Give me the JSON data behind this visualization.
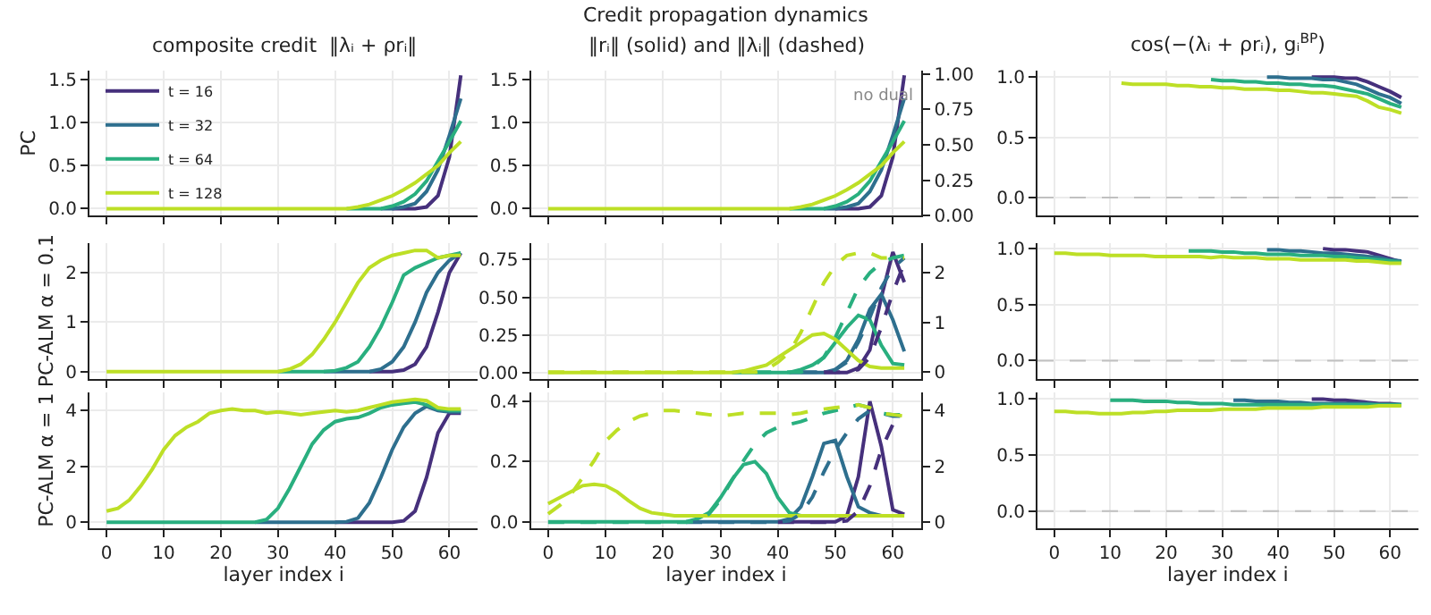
{
  "chart_data": [
    {
      "type": "line",
      "title": "composite credit  ‖λᵢ + ρrᵢ‖",
      "ylabel": "PC",
      "x": [
        0,
        2,
        4,
        6,
        8,
        10,
        12,
        14,
        16,
        18,
        20,
        22,
        24,
        26,
        28,
        30,
        32,
        34,
        36,
        38,
        40,
        42,
        44,
        46,
        48,
        50,
        52,
        54,
        56,
        58,
        60,
        62
      ],
      "xlim": [
        -3,
        65
      ],
      "xticks": [
        0,
        10,
        20,
        30,
        40,
        50,
        60
      ],
      "ylim": [
        -0.08,
        1.6
      ],
      "yticks": [
        {
          "value": 0,
          "label": "0.0"
        },
        {
          "value": 0.5,
          "label": "0.5"
        },
        {
          "value": 1,
          "label": "1.0"
        },
        {
          "value": 1.5,
          "label": "1.5"
        }
      ],
      "grid": true,
      "legend": "top left",
      "tick_labels": "y",
      "series": [
        {
          "name": "t = 16",
          "color": "#46307c",
          "values": [
            null,
            null,
            null,
            null,
            null,
            null,
            null,
            null,
            null,
            null,
            null,
            null,
            null,
            null,
            null,
            null,
            null,
            null,
            null,
            null,
            null,
            null,
            null,
            null,
            null,
            0,
            0,
            0,
            0.02,
            0.15,
            0.6,
            1.55
          ]
        },
        {
          "name": "t = 32",
          "color": "#2e6f8e",
          "values": [
            null,
            null,
            null,
            null,
            null,
            null,
            null,
            null,
            null,
            null,
            null,
            null,
            null,
            null,
            null,
            null,
            null,
            null,
            null,
            null,
            null,
            null,
            null,
            null,
            0,
            0,
            0.02,
            0.06,
            0.2,
            0.45,
            0.85,
            1.28
          ]
        },
        {
          "name": "t = 64",
          "color": "#29af7f",
          "values": [
            null,
            null,
            null,
            null,
            null,
            null,
            null,
            null,
            null,
            null,
            null,
            null,
            null,
            null,
            null,
            null,
            null,
            null,
            null,
            null,
            null,
            0,
            0,
            0,
            0,
            0.03,
            0.08,
            0.17,
            0.32,
            0.55,
            0.78,
            1.02
          ]
        },
        {
          "name": "t = 128",
          "color": "#bddf26",
          "values": [
            0,
            0,
            0,
            0,
            0,
            0,
            0,
            0,
            0,
            0,
            0,
            0,
            0,
            0,
            0,
            0,
            0,
            0,
            0,
            0,
            0,
            0,
            0.02,
            0.05,
            0.1,
            0.15,
            0.22,
            0.3,
            0.4,
            0.5,
            0.65,
            0.78
          ]
        }
      ]
    },
    {
      "type": "line",
      "title": "Credit propagation dynamics",
      "subtitle": "‖rᵢ‖ (solid) and ‖λᵢ‖ (dashed)",
      "annotations": [
        "no dual"
      ],
      "x": [
        0,
        2,
        4,
        6,
        8,
        10,
        12,
        14,
        16,
        18,
        20,
        22,
        24,
        26,
        28,
        30,
        32,
        34,
        36,
        38,
        40,
        42,
        44,
        46,
        48,
        50,
        52,
        54,
        56,
        58,
        60,
        62
      ],
      "xlim": [
        -3,
        65
      ],
      "xticks": [
        0,
        10,
        20,
        30,
        40,
        50,
        60
      ],
      "ylim": [
        -0.08,
        1.6
      ],
      "yticks": [
        {
          "value": 0,
          "label": "0.0"
        },
        {
          "value": 0.5,
          "label": "0.5"
        },
        {
          "value": 1,
          "label": "1.0"
        },
        {
          "value": 1.5,
          "label": "1.5"
        }
      ],
      "y2lim": [
        0,
        1.02
      ],
      "y2ticks": [
        {
          "value": 0,
          "label": "0.00"
        },
        {
          "value": 0.25,
          "label": "0.25"
        },
        {
          "value": 0.5,
          "label": "0.50"
        },
        {
          "value": 0.75,
          "label": "0.75"
        },
        {
          "value": 1,
          "label": "1.00"
        }
      ],
      "grid": true,
      "tick_labels": "y",
      "series": [
        {
          "color": "#46307c",
          "values": [
            null,
            null,
            null,
            null,
            null,
            null,
            null,
            null,
            null,
            null,
            null,
            null,
            null,
            null,
            null,
            null,
            null,
            null,
            null,
            null,
            null,
            null,
            null,
            null,
            null,
            0,
            0,
            0,
            0.02,
            0.15,
            0.6,
            1.55
          ]
        },
        {
          "color": "#2e6f8e",
          "values": [
            null,
            null,
            null,
            null,
            null,
            null,
            null,
            null,
            null,
            null,
            null,
            null,
            null,
            null,
            null,
            null,
            null,
            null,
            null,
            null,
            null,
            null,
            null,
            null,
            0,
            0,
            0.02,
            0.06,
            0.2,
            0.45,
            0.85,
            1.28
          ]
        },
        {
          "color": "#29af7f",
          "values": [
            null,
            null,
            null,
            null,
            null,
            null,
            null,
            null,
            null,
            null,
            null,
            null,
            null,
            null,
            null,
            null,
            null,
            null,
            null,
            null,
            null,
            0,
            0,
            0,
            0,
            0.03,
            0.08,
            0.17,
            0.32,
            0.55,
            0.78,
            1.02
          ]
        },
        {
          "color": "#bddf26",
          "values": [
            0,
            0,
            0,
            0,
            0,
            0,
            0,
            0,
            0,
            0,
            0,
            0,
            0,
            0,
            0,
            0,
            0,
            0,
            0,
            0,
            0,
            0,
            0.02,
            0.05,
            0.1,
            0.15,
            0.22,
            0.3,
            0.4,
            0.5,
            0.65,
            0.78
          ]
        }
      ]
    },
    {
      "type": "line",
      "title": "cos(−(λᵢ + ρrᵢ), gᵢ$^{BP}$)",
      "x": [
        12,
        14,
        16,
        18,
        20,
        22,
        24,
        26,
        28,
        30,
        32,
        34,
        36,
        38,
        40,
        42,
        44,
        46,
        48,
        50,
        52,
        54,
        56,
        58,
        60,
        62
      ],
      "xlim": [
        -3,
        65
      ],
      "xticks": [
        0,
        10,
        20,
        30,
        40,
        50,
        60
      ],
      "ylim": [
        -0.15,
        1.05
      ],
      "yticks": [
        {
          "value": 0,
          "label": "0.0"
        },
        {
          "value": 0.5,
          "label": "0.5"
        },
        {
          "value": 1,
          "label": "1.0"
        }
      ],
      "grid": true,
      "tick_labels": "y",
      "ref_lines": [
        {
          "axis": "y",
          "value": 0,
          "color": "#c0c0c0",
          "line_style": "dashed"
        }
      ],
      "series": [
        {
          "color": "#46307c",
          "values": [
            null,
            null,
            null,
            null,
            null,
            null,
            null,
            null,
            null,
            null,
            null,
            null,
            null,
            null,
            null,
            null,
            null,
            1.0,
            1.0,
            1.0,
            0.99,
            0.99,
            0.96,
            0.92,
            0.88,
            0.83
          ]
        },
        {
          "color": "#2e6f8e",
          "values": [
            null,
            null,
            null,
            null,
            null,
            null,
            null,
            null,
            null,
            null,
            null,
            null,
            null,
            1.0,
            1.0,
            0.99,
            0.99,
            0.99,
            0.98,
            0.98,
            0.96,
            0.94,
            0.9,
            0.86,
            0.83,
            0.78
          ]
        },
        {
          "color": "#29af7f",
          "values": [
            null,
            null,
            null,
            null,
            null,
            null,
            null,
            null,
            0.98,
            0.97,
            0.97,
            0.96,
            0.96,
            0.95,
            0.95,
            0.94,
            0.94,
            0.93,
            0.93,
            0.92,
            0.9,
            0.88,
            0.86,
            0.82,
            0.78,
            0.75
          ]
        },
        {
          "color": "#bddf26",
          "values": [
            0.95,
            0.94,
            0.94,
            0.94,
            0.94,
            0.93,
            0.93,
            0.92,
            0.92,
            0.91,
            0.91,
            0.9,
            0.9,
            0.9,
            0.89,
            0.89,
            0.88,
            0.87,
            0.87,
            0.86,
            0.85,
            0.84,
            0.8,
            0.75,
            0.73,
            0.7
          ]
        }
      ]
    },
    {
      "type": "line",
      "ylabel": "PC-ALM α = 0.1",
      "x": [
        0,
        2,
        4,
        6,
        8,
        10,
        12,
        14,
        16,
        18,
        20,
        22,
        24,
        26,
        28,
        30,
        32,
        34,
        36,
        38,
        40,
        42,
        44,
        46,
        48,
        50,
        52,
        54,
        56,
        58,
        60,
        62
      ],
      "xlim": [
        -3,
        65
      ],
      "xticks": [
        0,
        10,
        20,
        30,
        40,
        50,
        60
      ],
      "ylim": [
        -0.14,
        2.6
      ],
      "yticks": [
        0,
        1,
        2
      ],
      "grid": true,
      "tick_labels": "y",
      "series": [
        {
          "color": "#46307c",
          "values": [
            null,
            null,
            null,
            null,
            null,
            null,
            null,
            null,
            null,
            null,
            null,
            null,
            null,
            null,
            null,
            null,
            null,
            null,
            null,
            null,
            null,
            null,
            null,
            0,
            0,
            0,
            0.03,
            0.15,
            0.5,
            1.2,
            2.0,
            2.4
          ]
        },
        {
          "color": "#2e6f8e",
          "values": [
            null,
            null,
            null,
            null,
            null,
            null,
            null,
            null,
            null,
            null,
            null,
            null,
            null,
            null,
            null,
            null,
            null,
            null,
            null,
            0,
            0,
            0,
            0,
            0,
            0.05,
            0.2,
            0.5,
            1.0,
            1.6,
            2.0,
            2.25,
            2.4
          ]
        },
        {
          "color": "#29af7f",
          "values": [
            null,
            null,
            null,
            null,
            null,
            null,
            null,
            null,
            null,
            null,
            null,
            null,
            null,
            null,
            null,
            0,
            0,
            0,
            0,
            0,
            0.02,
            0.08,
            0.2,
            0.5,
            0.9,
            1.4,
            1.95,
            2.1,
            2.2,
            2.3,
            2.35,
            2.4
          ]
        },
        {
          "color": "#bddf26",
          "values": [
            0,
            0,
            0,
            0,
            0,
            0,
            0,
            0,
            0,
            0,
            0,
            0,
            0,
            0,
            0,
            0,
            0.05,
            0.15,
            0.35,
            0.65,
            1.0,
            1.4,
            1.8,
            2.1,
            2.25,
            2.35,
            2.4,
            2.45,
            2.45,
            2.3,
            2.35,
            2.35
          ]
        }
      ]
    },
    {
      "type": "line",
      "x": [
        0,
        2,
        4,
        6,
        8,
        10,
        12,
        14,
        16,
        18,
        20,
        22,
        24,
        26,
        28,
        30,
        32,
        34,
        36,
        38,
        40,
        42,
        44,
        46,
        48,
        50,
        52,
        54,
        56,
        58,
        60,
        62
      ],
      "xlim": [
        -3,
        65
      ],
      "xticks": [
        0,
        10,
        20,
        30,
        40,
        50,
        60
      ],
      "ylim": [
        -0.04,
        0.86
      ],
      "yticks": [
        {
          "value": 0,
          "label": "0.00"
        },
        {
          "value": 0.25,
          "label": "0.25"
        },
        {
          "value": 0.5,
          "label": "0.50"
        },
        {
          "value": 0.75,
          "label": "0.75"
        }
      ],
      "y2lim": [
        -0.13,
        2.6
      ],
      "y2ticks": [
        0,
        1,
        2
      ],
      "grid": true,
      "tick_labels": "y",
      "series": [
        {
          "color": "#46307c",
          "values": [
            null,
            null,
            null,
            null,
            null,
            null,
            null,
            null,
            null,
            null,
            null,
            null,
            null,
            null,
            null,
            null,
            null,
            null,
            null,
            null,
            null,
            null,
            null,
            null,
            0,
            0,
            0,
            0.03,
            0.15,
            0.5,
            0.8,
            0.6
          ]
        },
        {
          "color": "#2e6f8e",
          "values": [
            null,
            null,
            null,
            null,
            null,
            null,
            null,
            null,
            null,
            null,
            null,
            null,
            null,
            null,
            null,
            null,
            null,
            null,
            null,
            null,
            null,
            0,
            0,
            0,
            0,
            0.02,
            0.08,
            0.22,
            0.42,
            0.52,
            0.35,
            0.14
          ]
        },
        {
          "color": "#29af7f",
          "values": [
            null,
            null,
            null,
            null,
            null,
            null,
            null,
            null,
            null,
            null,
            null,
            null,
            null,
            null,
            null,
            null,
            0,
            0,
            0,
            0,
            0,
            0,
            0.02,
            0.05,
            0.1,
            0.2,
            0.3,
            0.38,
            0.35,
            0.18,
            0.06,
            0.05
          ]
        },
        {
          "color": "#bddf26",
          "values": [
            0,
            0,
            0,
            0,
            0,
            0,
            0,
            0,
            0,
            0,
            0,
            0,
            0,
            0,
            0,
            0,
            0,
            0.01,
            0.03,
            0.05,
            0.1,
            0.15,
            0.2,
            0.25,
            0.26,
            0.22,
            0.15,
            0.08,
            0.04,
            0.03,
            0.03,
            0.03
          ]
        },
        {
          "color": "#46307c",
          "axis": "y2",
          "line_style": "dashed",
          "values": [
            null,
            null,
            null,
            null,
            null,
            null,
            null,
            null,
            null,
            null,
            null,
            null,
            null,
            null,
            null,
            null,
            null,
            null,
            null,
            null,
            null,
            null,
            null,
            null,
            0,
            0,
            0,
            0.05,
            0.3,
            0.9,
            1.6,
            2.2
          ]
        },
        {
          "color": "#2e6f8e",
          "axis": "y2",
          "line_style": "dashed",
          "values": [
            null,
            null,
            null,
            null,
            null,
            null,
            null,
            null,
            null,
            null,
            null,
            null,
            null,
            null,
            null,
            null,
            null,
            null,
            null,
            null,
            null,
            null,
            0,
            0,
            0,
            0.05,
            0.2,
            0.6,
            1.1,
            1.7,
            2.1,
            2.3
          ]
        },
        {
          "color": "#29af7f",
          "axis": "y2",
          "line_style": "dashed",
          "values": [
            null,
            null,
            null,
            null,
            null,
            null,
            null,
            null,
            null,
            null,
            null,
            null,
            null,
            null,
            null,
            null,
            null,
            null,
            0,
            0,
            0,
            0,
            0,
            0.1,
            0.3,
            0.7,
            1.2,
            1.7,
            2.0,
            2.2,
            2.3,
            2.35
          ]
        },
        {
          "color": "#bddf26",
          "axis": "y2",
          "line_style": "dashed",
          "values": [
            0,
            0,
            0,
            0,
            0,
            0,
            0,
            0,
            0,
            0,
            0,
            0,
            0,
            0,
            0,
            0,
            0,
            0,
            0,
            0.05,
            0.2,
            0.4,
            0.8,
            1.3,
            1.8,
            2.15,
            2.35,
            2.4,
            2.4,
            2.3,
            2.3,
            2.3
          ]
        }
      ]
    },
    {
      "type": "line",
      "x": [
        0,
        2,
        4,
        6,
        8,
        10,
        12,
        14,
        16,
        18,
        20,
        22,
        24,
        26,
        28,
        30,
        32,
        34,
        36,
        38,
        40,
        42,
        44,
        46,
        48,
        50,
        52,
        54,
        56,
        58,
        60,
        62
      ],
      "xlim": [
        -3,
        65
      ],
      "xticks": [
        0,
        10,
        20,
        30,
        40,
        50,
        60
      ],
      "ylim": [
        -0.16,
        1.05
      ],
      "yticks": [
        {
          "value": 0,
          "label": "0.0"
        },
        {
          "value": 0.5,
          "label": "0.5"
        },
        {
          "value": 1,
          "label": "1.0"
        }
      ],
      "grid": true,
      "tick_labels": "y",
      "ref_lines": [
        {
          "axis": "y",
          "value": 0,
          "color": "#c0c0c0",
          "line_style": "dashed"
        }
      ],
      "series": [
        {
          "color": "#46307c",
          "values": [
            null,
            null,
            null,
            null,
            null,
            null,
            null,
            null,
            null,
            null,
            null,
            null,
            null,
            null,
            null,
            null,
            null,
            null,
            null,
            null,
            null,
            null,
            null,
            null,
            1.0,
            0.99,
            0.99,
            0.98,
            0.97,
            0.94,
            0.91,
            0.88
          ]
        },
        {
          "color": "#2e6f8e",
          "values": [
            null,
            null,
            null,
            null,
            null,
            null,
            null,
            null,
            null,
            null,
            null,
            null,
            null,
            null,
            null,
            null,
            null,
            null,
            null,
            0.99,
            0.99,
            0.98,
            0.98,
            0.97,
            0.96,
            0.96,
            0.95,
            0.94,
            0.93,
            0.92,
            0.9,
            0.89
          ]
        },
        {
          "color": "#29af7f",
          "values": [
            null,
            null,
            null,
            null,
            null,
            null,
            null,
            null,
            null,
            null,
            null,
            null,
            0.98,
            0.98,
            0.98,
            0.97,
            0.97,
            0.96,
            0.96,
            0.95,
            0.95,
            0.95,
            0.94,
            0.94,
            0.94,
            0.93,
            0.93,
            0.92,
            0.91,
            0.9,
            0.89,
            0.88
          ]
        },
        {
          "color": "#bddf26",
          "values": [
            0.96,
            0.96,
            0.95,
            0.95,
            0.95,
            0.94,
            0.94,
            0.94,
            0.94,
            0.93,
            0.93,
            0.93,
            0.93,
            0.93,
            0.92,
            0.93,
            0.92,
            0.92,
            0.92,
            0.91,
            0.91,
            0.91,
            0.9,
            0.9,
            0.9,
            0.9,
            0.9,
            0.89,
            0.89,
            0.88,
            0.87,
            0.87
          ]
        }
      ]
    },
    {
      "type": "line",
      "ylabel": "PC-ALM α = 1",
      "xlabel": "layer index i",
      "x": [
        0,
        2,
        4,
        6,
        8,
        10,
        12,
        14,
        16,
        18,
        20,
        22,
        24,
        26,
        28,
        30,
        32,
        34,
        36,
        38,
        40,
        42,
        44,
        46,
        48,
        50,
        52,
        54,
        56,
        58,
        60,
        62
      ],
      "xlim": [
        -3,
        65
      ],
      "xticks": [
        0,
        10,
        20,
        30,
        40,
        50,
        60
      ],
      "ylim": [
        -0.2,
        4.65
      ],
      "yticks": [
        0,
        2,
        4
      ],
      "grid": true,
      "series": [
        {
          "color": "#46307c",
          "values": [
            null,
            null,
            null,
            null,
            null,
            null,
            null,
            null,
            null,
            null,
            null,
            null,
            null,
            null,
            null,
            null,
            null,
            null,
            null,
            null,
            0,
            0,
            0,
            0,
            0,
            0,
            0.05,
            0.4,
            1.6,
            3.2,
            3.9,
            3.9
          ]
        },
        {
          "color": "#2e6f8e",
          "values": [
            null,
            null,
            null,
            null,
            null,
            null,
            null,
            null,
            null,
            null,
            null,
            null,
            null,
            0,
            0,
            0,
            0,
            0,
            0,
            0,
            0,
            0.02,
            0.15,
            0.7,
            1.6,
            2.6,
            3.4,
            3.9,
            4.15,
            4.0,
            3.95,
            3.95
          ]
        },
        {
          "color": "#29af7f",
          "values": [
            0,
            0,
            0,
            0,
            0,
            0,
            0,
            0,
            0,
            0,
            0,
            0,
            0,
            0,
            0.1,
            0.5,
            1.2,
            2.0,
            2.8,
            3.3,
            3.6,
            3.7,
            3.75,
            3.9,
            4.1,
            4.2,
            4.25,
            4.3,
            4.2,
            4.05,
            4.0,
            4.0
          ]
        },
        {
          "color": "#bddf26",
          "values": [
            0.4,
            0.5,
            0.8,
            1.3,
            1.9,
            2.6,
            3.1,
            3.4,
            3.6,
            3.9,
            4.0,
            4.05,
            4.0,
            4.0,
            3.9,
            3.95,
            3.9,
            3.85,
            3.9,
            3.95,
            4.0,
            3.95,
            4.0,
            4.1,
            4.2,
            4.3,
            4.35,
            4.4,
            4.35,
            4.1,
            4.05,
            4.05
          ]
        }
      ]
    },
    {
      "type": "line",
      "xlabel": "layer index i",
      "x": [
        0,
        2,
        4,
        6,
        8,
        10,
        12,
        14,
        16,
        18,
        20,
        22,
        24,
        26,
        28,
        30,
        32,
        34,
        36,
        38,
        40,
        42,
        44,
        46,
        48,
        50,
        52,
        54,
        56,
        58,
        60,
        62
      ],
      "xlim": [
        -3,
        65
      ],
      "xticks": [
        0,
        10,
        20,
        30,
        40,
        50,
        60
      ],
      "ylim": [
        -0.02,
        0.43
      ],
      "yticks": [
        {
          "value": 0,
          "label": "0.0"
        },
        {
          "value": 0.2,
          "label": "0.2"
        },
        {
          "value": 0.4,
          "label": "0.4"
        }
      ],
      "y2lim": [
        -0.2,
        4.65
      ],
      "y2ticks": [
        0,
        2,
        4
      ],
      "grid": true,
      "series": [
        {
          "color": "#46307c",
          "values": [
            null,
            null,
            null,
            null,
            null,
            null,
            null,
            null,
            null,
            null,
            null,
            null,
            null,
            null,
            null,
            null,
            null,
            null,
            null,
            null,
            0,
            0,
            0,
            0,
            0,
            0,
            0.02,
            0.15,
            0.4,
            0.25,
            0.04,
            0.025
          ]
        },
        {
          "color": "#2e6f8e",
          "values": [
            null,
            null,
            null,
            null,
            null,
            null,
            null,
            null,
            null,
            null,
            null,
            null,
            0,
            0,
            0,
            0,
            0,
            0,
            0,
            0,
            0,
            0.01,
            0.05,
            0.15,
            0.26,
            0.27,
            0.15,
            0.05,
            0.03,
            0.02,
            null,
            null
          ]
        },
        {
          "color": "#29af7f",
          "values": [
            0,
            0,
            0,
            0,
            0,
            0,
            0,
            0,
            0,
            0,
            0,
            0,
            0,
            0.01,
            0.03,
            0.08,
            0.14,
            0.19,
            0.2,
            0.16,
            0.08,
            0.03,
            0.02,
            null,
            null,
            null,
            null,
            null,
            null,
            null,
            null,
            null
          ]
        },
        {
          "color": "#bddf26",
          "values": [
            0.06,
            0.08,
            0.1,
            0.12,
            0.125,
            0.12,
            0.1,
            0.07,
            0.045,
            0.03,
            0.025,
            0.02,
            0.02,
            0.02,
            0.02,
            0.02,
            0.02,
            0.02,
            0.02,
            0.02,
            0.02,
            0.02,
            0.02,
            0.02,
            0.02,
            0.02,
            0.02,
            0.02,
            0.02,
            0.02,
            0.02,
            0.02
          ]
        },
        {
          "color": "#46307c",
          "axis": "y2",
          "line_style": "dashed",
          "values": [
            null,
            null,
            null,
            null,
            null,
            null,
            null,
            null,
            null,
            null,
            null,
            null,
            null,
            null,
            null,
            null,
            null,
            null,
            null,
            null,
            0,
            0,
            0,
            0,
            0,
            0,
            0.05,
            0.4,
            1.3,
            2.6,
            3.5,
            3.8
          ]
        },
        {
          "color": "#2e6f8e",
          "axis": "y2",
          "line_style": "dashed",
          "values": [
            null,
            null,
            null,
            null,
            null,
            null,
            null,
            null,
            null,
            null,
            null,
            null,
            0,
            0,
            0,
            0,
            0,
            0,
            0,
            0,
            0,
            0.05,
            0.3,
            0.9,
            1.8,
            2.6,
            3.2,
            3.7,
            4.0,
            3.9,
            3.8,
            3.8
          ]
        },
        {
          "color": "#29af7f",
          "axis": "y2",
          "line_style": "dashed",
          "values": [
            0,
            0,
            0,
            0,
            0,
            0,
            0,
            0,
            0,
            0,
            0,
            0,
            0,
            0.05,
            0.3,
            0.8,
            1.5,
            2.2,
            2.8,
            3.2,
            3.4,
            3.5,
            3.6,
            3.75,
            3.9,
            4.0,
            4.1,
            4.2,
            4.1,
            3.9,
            3.85,
            3.85
          ]
        },
        {
          "color": "#bddf26",
          "axis": "y2",
          "line_style": "dashed",
          "values": [
            0.3,
            0.6,
            1.0,
            1.6,
            2.2,
            2.9,
            3.3,
            3.6,
            3.8,
            3.9,
            4.0,
            4.0,
            3.95,
            3.9,
            3.85,
            3.8,
            3.85,
            3.9,
            3.9,
            3.9,
            3.9,
            3.85,
            3.9,
            4.0,
            4.05,
            4.1,
            4.15,
            4.2,
            4.1,
            3.9,
            3.85,
            3.8
          ]
        }
      ]
    },
    {
      "type": "line",
      "xlabel": "layer index i",
      "x": [
        0,
        2,
        4,
        6,
        8,
        10,
        12,
        14,
        16,
        18,
        20,
        22,
        24,
        26,
        28,
        30,
        32,
        34,
        36,
        38,
        40,
        42,
        44,
        46,
        48,
        50,
        52,
        54,
        56,
        58,
        60,
        62
      ],
      "xlim": [
        -3,
        65
      ],
      "xticks": [
        0,
        10,
        20,
        30,
        40,
        50,
        60
      ],
      "ylim": [
        -0.15,
        1.06
      ],
      "yticks": [
        {
          "value": 0,
          "label": "0.0"
        },
        {
          "value": 0.5,
          "label": "0.5"
        },
        {
          "value": 1,
          "label": "1.0"
        }
      ],
      "grid": true,
      "ref_lines": [
        {
          "axis": "y",
          "value": 0,
          "color": "#c0c0c0",
          "line_style": "dashed"
        }
      ],
      "series": [
        {
          "color": "#46307c",
          "values": [
            null,
            null,
            null,
            null,
            null,
            null,
            null,
            null,
            null,
            null,
            null,
            null,
            null,
            null,
            null,
            null,
            null,
            null,
            null,
            null,
            null,
            null,
            null,
            1.0,
            1.0,
            0.99,
            0.99,
            0.98,
            0.97,
            0.96,
            0.96,
            0.95
          ]
        },
        {
          "color": "#2e6f8e",
          "values": [
            null,
            null,
            null,
            null,
            null,
            null,
            null,
            null,
            null,
            null,
            null,
            null,
            null,
            null,
            null,
            null,
            0.99,
            0.99,
            0.98,
            0.98,
            0.98,
            0.97,
            0.97,
            0.96,
            0.96,
            0.96,
            0.96,
            0.96,
            0.96,
            0.95,
            0.95,
            0.95
          ]
        },
        {
          "color": "#29af7f",
          "values": [
            null,
            null,
            null,
            null,
            null,
            0.99,
            0.99,
            0.99,
            0.98,
            0.98,
            0.98,
            0.97,
            0.97,
            0.96,
            0.96,
            0.96,
            0.95,
            0.95,
            0.95,
            0.95,
            0.95,
            0.95,
            0.95,
            0.95,
            0.95,
            0.95,
            0.95,
            0.95,
            0.95,
            0.95,
            0.95,
            0.95
          ]
        },
        {
          "color": "#bddf26",
          "values": [
            0.89,
            0.89,
            0.88,
            0.88,
            0.87,
            0.87,
            0.87,
            0.88,
            0.88,
            0.89,
            0.89,
            0.9,
            0.9,
            0.9,
            0.9,
            0.91,
            0.91,
            0.91,
            0.91,
            0.92,
            0.92,
            0.92,
            0.92,
            0.92,
            0.93,
            0.93,
            0.93,
            0.93,
            0.93,
            0.94,
            0.94,
            0.94
          ]
        }
      ]
    }
  ]
}
